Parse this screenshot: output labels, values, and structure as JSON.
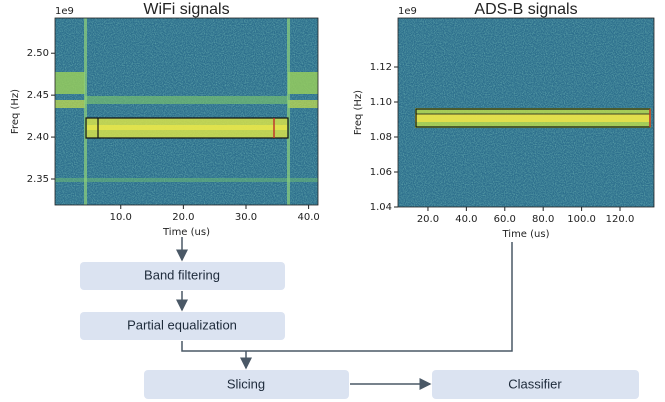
{
  "panels": [
    {
      "title": "WiFi signals",
      "offset_label": "1e9",
      "y_label": "Freq (Hz)",
      "x_label": "Time (us)",
      "xlim": [
        -0.5,
        41.5
      ],
      "ylim": [
        2.319,
        2.542
      ],
      "xticks": [
        {
          "value": 10,
          "label": "10.0"
        },
        {
          "value": 20,
          "label": "20.0"
        },
        {
          "value": 30,
          "label": "30.0"
        },
        {
          "value": 40,
          "label": "40.0"
        }
      ],
      "yticks": [
        2.35,
        {
          "value": 2.4,
          "label": "2.40"
        },
        2.45,
        {
          "value": 2.5,
          "label": "2.50"
        }
      ]
    },
    {
      "title": "ADS-B signals",
      "offset_label": "1e9",
      "y_label": "Freq (Hz)",
      "x_label": "Time (us)",
      "xlim": [
        4.4,
        137.7
      ],
      "ylim": [
        1.04,
        1.148
      ],
      "xticks": [
        {
          "value": 20,
          "label": "20.0"
        },
        {
          "value": 40,
          "label": "40.0"
        },
        {
          "value": 60,
          "label": "60.0"
        },
        {
          "value": 80,
          "label": "80.0"
        },
        {
          "value": 100,
          "label": "100.0"
        },
        {
          "value": 120,
          "label": "120.0"
        }
      ],
      "yticks": [
        1.04,
        1.06,
        1.08,
        {
          "value": 1.1,
          "label": "1.10"
        },
        1.12
      ]
    }
  ],
  "nodes": [
    {
      "label": "Band filtering"
    },
    {
      "label": "Partial equalization"
    },
    {
      "label": "Slicing"
    },
    {
      "label": "Classifier"
    }
  ]
}
